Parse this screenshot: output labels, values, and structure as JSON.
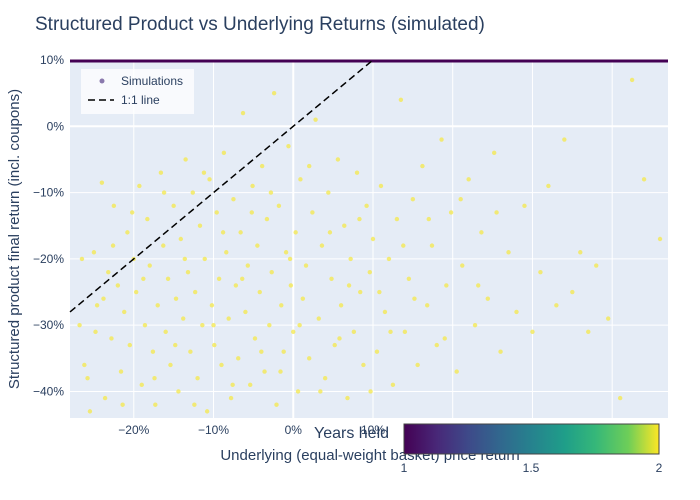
{
  "chart_data": {
    "type": "scatter",
    "title": "Structured Product vs Underlying Returns (simulated)",
    "xlabel": "Underlying (equal-weight basket) price return",
    "ylabel": "Structured product final return (incl. coupons)",
    "xlim": [
      -0.28,
      0.47
    ],
    "ylim": [
      -0.44,
      0.1
    ],
    "x_ticks": [
      {
        "value": -0.2,
        "label": "−20%"
      },
      {
        "value": -0.1,
        "label": "−10%"
      },
      {
        "value": 0.0,
        "label": "0%"
      },
      {
        "value": 0.1,
        "label": "10%"
      }
    ],
    "y_ticks": [
      {
        "value": 0.1,
        "label": "10%"
      },
      {
        "value": 0.0,
        "label": "0%"
      },
      {
        "value": -0.1,
        "label": "−10%"
      },
      {
        "value": -0.2,
        "label": "−20%"
      },
      {
        "value": -0.3,
        "label": "−30%"
      },
      {
        "value": -0.4,
        "label": "−40%"
      }
    ],
    "legend": {
      "position": "top-left",
      "entries": [
        "Simulations",
        "1:1 line"
      ]
    },
    "colorbar": {
      "title": "Years held",
      "min": 1,
      "max": 2,
      "tick_labels": [
        "1",
        "1.5",
        "2"
      ],
      "colorscale": "viridis"
    },
    "capped_series": {
      "y": 0.105,
      "x_range": [
        -0.28,
        0.47
      ],
      "color": "#440154"
    },
    "series": [
      {
        "name": "Simulations",
        "color": "#f4e84a",
        "points": [
          [
            -0.268,
            -0.3
          ],
          [
            -0.262,
            -0.36
          ],
          [
            -0.255,
            -0.43
          ],
          [
            -0.25,
            -0.19
          ],
          [
            -0.246,
            -0.27
          ],
          [
            -0.24,
            -0.085
          ],
          [
            -0.236,
            -0.41
          ],
          [
            -0.232,
            -0.22
          ],
          [
            -0.228,
            -0.32
          ],
          [
            -0.225,
            -0.12
          ],
          [
            -0.22,
            -0.24
          ],
          [
            -0.216,
            -0.37
          ],
          [
            -0.212,
            -0.28
          ],
          [
            -0.208,
            -0.16
          ],
          [
            -0.205,
            -0.33
          ],
          [
            -0.2,
            -0.2
          ],
          [
            -0.197,
            -0.25
          ],
          [
            -0.193,
            -0.09
          ],
          [
            -0.19,
            -0.39
          ],
          [
            -0.186,
            -0.3
          ],
          [
            -0.183,
            -0.14
          ],
          [
            -0.18,
            -0.21
          ],
          [
            -0.176,
            -0.34
          ],
          [
            -0.173,
            -0.42
          ],
          [
            -0.17,
            -0.27
          ],
          [
            -0.166,
            -0.07
          ],
          [
            -0.163,
            -0.18
          ],
          [
            -0.16,
            -0.31
          ],
          [
            -0.157,
            -0.23
          ],
          [
            -0.154,
            -0.36
          ],
          [
            -0.15,
            -0.12
          ],
          [
            -0.147,
            -0.26
          ],
          [
            -0.144,
            -0.4
          ],
          [
            -0.141,
            -0.17
          ],
          [
            -0.138,
            -0.29
          ],
          [
            -0.135,
            -0.05
          ],
          [
            -0.132,
            -0.22
          ],
          [
            -0.129,
            -0.34
          ],
          [
            -0.126,
            -0.1
          ],
          [
            -0.123,
            -0.25
          ],
          [
            -0.12,
            -0.38
          ],
          [
            -0.117,
            -0.15
          ],
          [
            -0.114,
            -0.3
          ],
          [
            -0.111,
            -0.2
          ],
          [
            -0.108,
            -0.43
          ],
          [
            -0.105,
            -0.08
          ],
          [
            -0.102,
            -0.27
          ],
          [
            -0.099,
            -0.33
          ],
          [
            -0.096,
            -0.13
          ],
          [
            -0.093,
            -0.23
          ],
          [
            -0.09,
            -0.36
          ],
          [
            -0.087,
            -0.04
          ],
          [
            -0.084,
            -0.19
          ],
          [
            -0.081,
            -0.29
          ],
          [
            -0.078,
            -0.41
          ],
          [
            -0.075,
            -0.11
          ],
          [
            -0.072,
            -0.24
          ],
          [
            -0.069,
            -0.35
          ],
          [
            -0.066,
            -0.16
          ],
          [
            -0.063,
            0.02
          ],
          [
            -0.06,
            -0.28
          ],
          [
            -0.057,
            -0.21
          ],
          [
            -0.054,
            -0.39
          ],
          [
            -0.051,
            -0.09
          ],
          [
            -0.048,
            -0.32
          ],
          [
            -0.045,
            -0.18
          ],
          [
            -0.042,
            -0.25
          ],
          [
            -0.039,
            -0.06
          ],
          [
            -0.036,
            -0.37
          ],
          [
            -0.033,
            -0.14
          ],
          [
            -0.03,
            -0.3
          ],
          [
            -0.027,
            -0.22
          ],
          [
            -0.024,
            0.05
          ],
          [
            -0.021,
            -0.42
          ],
          [
            -0.018,
            -0.12
          ],
          [
            -0.015,
            -0.27
          ],
          [
            -0.012,
            -0.34
          ],
          [
            -0.009,
            -0.19
          ],
          [
            -0.006,
            -0.03
          ],
          [
            -0.003,
            -0.24
          ],
          [
            0.0,
            -0.31
          ],
          [
            0.003,
            -0.16
          ],
          [
            0.006,
            -0.4
          ],
          [
            0.009,
            -0.08
          ],
          [
            0.012,
            -0.26
          ],
          [
            0.016,
            -0.21
          ],
          [
            0.02,
            -0.35
          ],
          [
            0.024,
            -0.13
          ],
          [
            0.028,
            0.01
          ],
          [
            0.032,
            -0.29
          ],
          [
            0.036,
            -0.18
          ],
          [
            0.04,
            -0.38
          ],
          [
            0.044,
            -0.1
          ],
          [
            0.048,
            -0.23
          ],
          [
            0.052,
            -0.33
          ],
          [
            0.056,
            -0.05
          ],
          [
            0.06,
            -0.27
          ],
          [
            0.064,
            -0.15
          ],
          [
            0.068,
            -0.41
          ],
          [
            0.072,
            -0.2
          ],
          [
            0.076,
            -0.31
          ],
          [
            0.08,
            -0.07
          ],
          [
            0.084,
            -0.25
          ],
          [
            0.088,
            -0.36
          ],
          [
            0.092,
            -0.12
          ],
          [
            0.096,
            -0.22
          ],
          [
            0.1,
            -0.17
          ],
          [
            0.105,
            -0.34
          ],
          [
            0.11,
            -0.09
          ],
          [
            0.115,
            -0.28
          ],
          [
            0.12,
            -0.2
          ],
          [
            0.125,
            -0.39
          ],
          [
            0.13,
            -0.14
          ],
          [
            0.135,
            0.04
          ],
          [
            0.14,
            -0.31
          ],
          [
            0.145,
            -0.23
          ],
          [
            0.15,
            -0.11
          ],
          [
            0.156,
            -0.36
          ],
          [
            0.162,
            -0.06
          ],
          [
            0.168,
            -0.27
          ],
          [
            0.174,
            -0.18
          ],
          [
            0.18,
            -0.33
          ],
          [
            0.186,
            -0.02
          ],
          [
            0.192,
            -0.24
          ],
          [
            0.198,
            -0.13
          ],
          [
            0.205,
            -0.37
          ],
          [
            0.212,
            -0.21
          ],
          [
            0.22,
            -0.08
          ],
          [
            0.228,
            -0.3
          ],
          [
            0.236,
            -0.16
          ],
          [
            0.244,
            -0.26
          ],
          [
            0.252,
            -0.04
          ],
          [
            0.26,
            -0.34
          ],
          [
            0.27,
            -0.19
          ],
          [
            0.28,
            -0.28
          ],
          [
            0.29,
            -0.12
          ],
          [
            0.3,
            -0.31
          ],
          [
            0.31,
            -0.22
          ],
          [
            0.32,
            -0.09
          ],
          [
            0.33,
            -0.27
          ],
          [
            0.34,
            -0.02
          ],
          [
            0.35,
            -0.25
          ],
          [
            0.36,
            -0.19
          ],
          [
            0.37,
            -0.31
          ],
          [
            0.38,
            -0.21
          ],
          [
            0.395,
            -0.29
          ],
          [
            0.41,
            -0.41
          ],
          [
            0.425,
            0.07
          ],
          [
            0.44,
            -0.08
          ],
          [
            0.46,
            -0.17
          ],
          [
            -0.265,
            -0.2
          ],
          [
            -0.258,
            -0.38
          ],
          [
            -0.248,
            -0.31
          ],
          [
            -0.238,
            -0.26
          ],
          [
            -0.226,
            -0.18
          ],
          [
            -0.214,
            -0.42
          ],
          [
            -0.202,
            -0.13
          ],
          [
            -0.188,
            -0.23
          ],
          [
            -0.174,
            -0.38
          ],
          [
            -0.162,
            -0.1
          ],
          [
            -0.148,
            -0.33
          ],
          [
            -0.136,
            -0.2
          ],
          [
            -0.124,
            -0.42
          ],
          [
            -0.112,
            -0.07
          ],
          [
            -0.1,
            -0.3
          ],
          [
            -0.088,
            -0.16
          ],
          [
            -0.076,
            -0.39
          ],
          [
            -0.064,
            -0.23
          ],
          [
            -0.052,
            -0.13
          ],
          [
            -0.04,
            -0.34
          ],
          [
            -0.028,
            -0.1
          ],
          [
            -0.016,
            -0.37
          ],
          [
            -0.004,
            -0.2
          ],
          [
            0.008,
            -0.3
          ],
          [
            0.02,
            -0.06
          ],
          [
            0.034,
            -0.4
          ],
          [
            0.046,
            -0.16
          ],
          [
            0.058,
            -0.32
          ],
          [
            0.07,
            -0.24
          ],
          [
            0.083,
            -0.14
          ],
          [
            0.097,
            -0.4
          ],
          [
            0.108,
            -0.25
          ],
          [
            0.122,
            -0.31
          ],
          [
            0.138,
            -0.18
          ],
          [
            0.152,
            -0.26
          ],
          [
            0.17,
            -0.14
          ],
          [
            0.19,
            -0.32
          ],
          [
            0.21,
            -0.11
          ],
          [
            0.232,
            -0.24
          ],
          [
            0.255,
            -0.13
          ]
        ]
      }
    ]
  }
}
